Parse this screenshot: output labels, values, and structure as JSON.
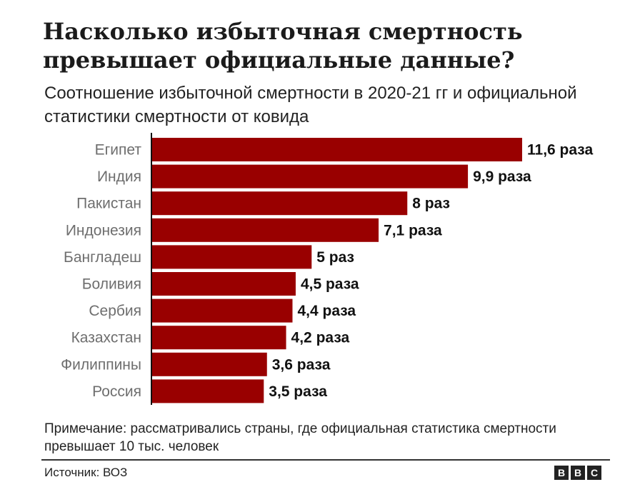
{
  "title": "Насколько избыточная смертность превышает официальные данные?",
  "subtitle": "Соотношение избыточной смертности в 2020-21 гг и официальной статистики смертности от ковида",
  "note": "Примечание: рассматривались страны, где официальная статистика смертности превышает 10 тыс. человек",
  "source": "Источник: ВОЗ",
  "logo": [
    "B",
    "B",
    "C"
  ],
  "colors": {
    "bar": "#990000",
    "axis": "#111111"
  },
  "chart_data": {
    "type": "bar",
    "orientation": "horizontal",
    "categories": [
      "Египет",
      "Индия",
      "Пакистан",
      "Индонезия",
      "Бангладеш",
      "Боливия",
      "Сербия",
      "Казахстан",
      "Филиппины",
      "Россия"
    ],
    "values": [
      11.6,
      9.9,
      8,
      7.1,
      5,
      4.5,
      4.4,
      4.2,
      3.6,
      3.5
    ],
    "value_labels": [
      "11,6 раза",
      "9,9 раза",
      "8 раз",
      "7,1 раза",
      "5 раз",
      "4,5 раза",
      "4,4 раза",
      "4,2 раза",
      "3,6 раза",
      "3,5 раза"
    ],
    "xlim": [
      0,
      11.6
    ],
    "grid": false
  }
}
